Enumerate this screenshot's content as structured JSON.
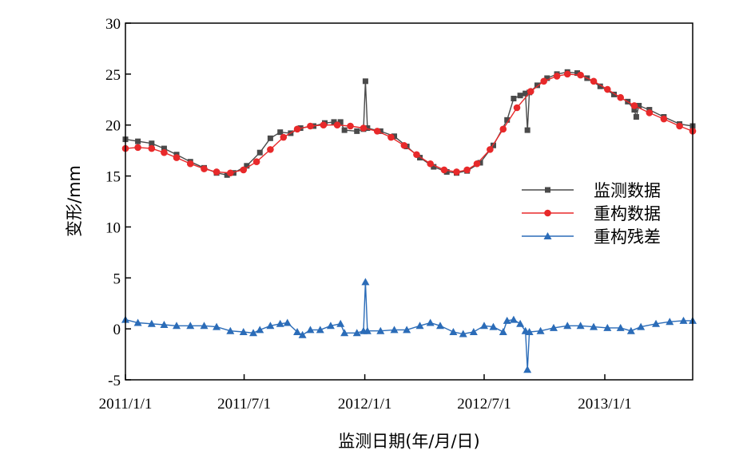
{
  "chart_data": {
    "type": "line",
    "xlabel": "监测日期(年/月/日)",
    "ylabel": "变形/mm",
    "xlim": [
      "2011-01-01",
      "2013-05-15"
    ],
    "ylim": [
      -5,
      30
    ],
    "xticks": [
      {
        "date": "2011-01-01",
        "label": "2011/1/1"
      },
      {
        "date": "2011-07-01",
        "label": "2011/7/1"
      },
      {
        "date": "2012-01-01",
        "label": "2012/1/1"
      },
      {
        "date": "2012-07-01",
        "label": "2012/7/1"
      },
      {
        "date": "2013-01-01",
        "label": "2013/1/1"
      }
    ],
    "yticks": [
      -5,
      0,
      5,
      10,
      15,
      20,
      25,
      30
    ],
    "grid": false,
    "legend": "right",
    "series": [
      {
        "name": "监测数据",
        "color": "#4a4a4a",
        "marker": "square",
        "points": [
          [
            "2011-01-01",
            18.6
          ],
          [
            "2011-01-20",
            18.4
          ],
          [
            "2011-02-10",
            18.2
          ],
          [
            "2011-03-01",
            17.7
          ],
          [
            "2011-03-20",
            17.1
          ],
          [
            "2011-04-10",
            16.4
          ],
          [
            "2011-05-01",
            15.8
          ],
          [
            "2011-05-20",
            15.3
          ],
          [
            "2011-06-05",
            15.1
          ],
          [
            "2011-06-15",
            15.3
          ],
          [
            "2011-07-05",
            16.0
          ],
          [
            "2011-07-25",
            17.3
          ],
          [
            "2011-08-10",
            18.7
          ],
          [
            "2011-08-25",
            19.3
          ],
          [
            "2011-09-10",
            19.2
          ],
          [
            "2011-09-25",
            19.7
          ],
          [
            "2011-10-15",
            19.9
          ],
          [
            "2011-11-01",
            20.2
          ],
          [
            "2011-11-15",
            20.3
          ],
          [
            "2011-11-25",
            20.3
          ],
          [
            "2011-12-01",
            19.5
          ],
          [
            "2011-12-20",
            19.4
          ],
          [
            "2011-12-30",
            19.6
          ],
          [
            "2012-01-02",
            24.3
          ],
          [
            "2012-01-05",
            19.7
          ],
          [
            "2012-01-25",
            19.4
          ],
          [
            "2012-02-15",
            18.9
          ],
          [
            "2012-03-05",
            17.9
          ],
          [
            "2012-03-25",
            16.8
          ],
          [
            "2012-04-15",
            15.9
          ],
          [
            "2012-05-05",
            15.4
          ],
          [
            "2012-05-20",
            15.3
          ],
          [
            "2012-06-05",
            15.5
          ],
          [
            "2012-06-25",
            16.3
          ],
          [
            "2012-07-15",
            18.0
          ],
          [
            "2012-08-05",
            20.5
          ],
          [
            "2012-08-15",
            22.6
          ],
          [
            "2012-08-25",
            22.9
          ],
          [
            "2012-09-02",
            23.1
          ],
          [
            "2012-09-05",
            19.5
          ],
          [
            "2012-09-08",
            23.2
          ],
          [
            "2012-09-20",
            23.9
          ],
          [
            "2012-10-05",
            24.6
          ],
          [
            "2012-10-20",
            25.0
          ],
          [
            "2012-11-05",
            25.2
          ],
          [
            "2012-11-20",
            25.1
          ],
          [
            "2012-12-05",
            24.6
          ],
          [
            "2012-12-25",
            23.8
          ],
          [
            "2013-01-15",
            23.0
          ],
          [
            "2013-02-05",
            22.3
          ],
          [
            "2013-02-15",
            21.5
          ],
          [
            "2013-02-18",
            20.8
          ],
          [
            "2013-02-22",
            21.9
          ],
          [
            "2013-03-10",
            21.5
          ],
          [
            "2013-04-01",
            20.8
          ],
          [
            "2013-04-25",
            20.1
          ],
          [
            "2013-05-15",
            19.9
          ]
        ]
      },
      {
        "name": "重构数据",
        "color": "#e8292a",
        "marker": "circle",
        "points": [
          [
            "2011-01-01",
            17.7
          ],
          [
            "2011-01-20",
            17.8
          ],
          [
            "2011-02-10",
            17.7
          ],
          [
            "2011-03-01",
            17.3
          ],
          [
            "2011-03-20",
            16.8
          ],
          [
            "2011-04-10",
            16.2
          ],
          [
            "2011-05-01",
            15.7
          ],
          [
            "2011-05-20",
            15.4
          ],
          [
            "2011-06-10",
            15.3
          ],
          [
            "2011-06-30",
            15.6
          ],
          [
            "2011-07-20",
            16.4
          ],
          [
            "2011-08-10",
            17.6
          ],
          [
            "2011-08-30",
            18.8
          ],
          [
            "2011-09-20",
            19.6
          ],
          [
            "2011-10-10",
            19.9
          ],
          [
            "2011-10-30",
            20.0
          ],
          [
            "2011-11-20",
            20.0
          ],
          [
            "2011-12-10",
            19.9
          ],
          [
            "2011-12-30",
            19.7
          ],
          [
            "2012-01-20",
            19.4
          ],
          [
            "2012-02-10",
            18.8
          ],
          [
            "2012-03-01",
            18.0
          ],
          [
            "2012-03-20",
            17.1
          ],
          [
            "2012-04-10",
            16.2
          ],
          [
            "2012-05-01",
            15.6
          ],
          [
            "2012-05-20",
            15.4
          ],
          [
            "2012-06-05",
            15.6
          ],
          [
            "2012-06-20",
            16.2
          ],
          [
            "2012-07-10",
            17.6
          ],
          [
            "2012-07-30",
            19.6
          ],
          [
            "2012-08-20",
            21.7
          ],
          [
            "2012-09-10",
            23.3
          ],
          [
            "2012-09-30",
            24.3
          ],
          [
            "2012-10-20",
            24.8
          ],
          [
            "2012-11-05",
            25.0
          ],
          [
            "2012-11-25",
            24.9
          ],
          [
            "2012-12-15",
            24.3
          ],
          [
            "2013-01-05",
            23.5
          ],
          [
            "2013-01-25",
            22.7
          ],
          [
            "2013-02-15",
            21.9
          ],
          [
            "2013-03-10",
            21.2
          ],
          [
            "2013-04-01",
            20.6
          ],
          [
            "2013-04-25",
            19.9
          ],
          [
            "2013-05-15",
            19.4
          ]
        ]
      },
      {
        "name": "重构残差",
        "color": "#2b6cb8",
        "marker": "triangle",
        "points": [
          [
            "2011-01-01",
            0.9
          ],
          [
            "2011-01-20",
            0.6
          ],
          [
            "2011-02-10",
            0.5
          ],
          [
            "2011-03-01",
            0.4
          ],
          [
            "2011-03-20",
            0.3
          ],
          [
            "2011-04-10",
            0.3
          ],
          [
            "2011-05-01",
            0.3
          ],
          [
            "2011-05-20",
            0.2
          ],
          [
            "2011-06-10",
            -0.2
          ],
          [
            "2011-06-30",
            -0.3
          ],
          [
            "2011-07-15",
            -0.4
          ],
          [
            "2011-07-25",
            -0.1
          ],
          [
            "2011-08-10",
            0.3
          ],
          [
            "2011-08-25",
            0.5
          ],
          [
            "2011-09-05",
            0.6
          ],
          [
            "2011-09-20",
            -0.3
          ],
          [
            "2011-09-28",
            -0.6
          ],
          [
            "2011-10-10",
            -0.1
          ],
          [
            "2011-10-25",
            -0.1
          ],
          [
            "2011-11-10",
            0.3
          ],
          [
            "2011-11-25",
            0.5
          ],
          [
            "2011-12-01",
            -0.4
          ],
          [
            "2011-12-20",
            -0.4
          ],
          [
            "2011-12-30",
            -0.2
          ],
          [
            "2012-01-02",
            4.6
          ],
          [
            "2012-01-05",
            -0.2
          ],
          [
            "2012-01-25",
            -0.2
          ],
          [
            "2012-02-15",
            -0.1
          ],
          [
            "2012-03-05",
            -0.1
          ],
          [
            "2012-03-25",
            0.3
          ],
          [
            "2012-04-10",
            0.6
          ],
          [
            "2012-04-25",
            0.3
          ],
          [
            "2012-05-15",
            -0.3
          ],
          [
            "2012-05-30",
            -0.5
          ],
          [
            "2012-06-15",
            -0.3
          ],
          [
            "2012-07-01",
            0.3
          ],
          [
            "2012-07-15",
            0.2
          ],
          [
            "2012-07-30",
            -0.3
          ],
          [
            "2012-08-05",
            0.8
          ],
          [
            "2012-08-15",
            0.9
          ],
          [
            "2012-08-25",
            0.5
          ],
          [
            "2012-09-02",
            -0.2
          ],
          [
            "2012-09-05",
            -4.0
          ],
          [
            "2012-09-08",
            -0.3
          ],
          [
            "2012-09-25",
            -0.2
          ],
          [
            "2012-10-15",
            0.1
          ],
          [
            "2012-11-05",
            0.3
          ],
          [
            "2012-11-25",
            0.3
          ],
          [
            "2012-12-15",
            0.2
          ],
          [
            "2013-01-05",
            0.1
          ],
          [
            "2013-01-25",
            0.1
          ],
          [
            "2013-02-10",
            -0.2
          ],
          [
            "2013-02-25",
            0.2
          ],
          [
            "2013-03-20",
            0.5
          ],
          [
            "2013-04-10",
            0.7
          ],
          [
            "2013-05-01",
            0.8
          ],
          [
            "2013-05-15",
            0.8
          ]
        ]
      }
    ]
  }
}
